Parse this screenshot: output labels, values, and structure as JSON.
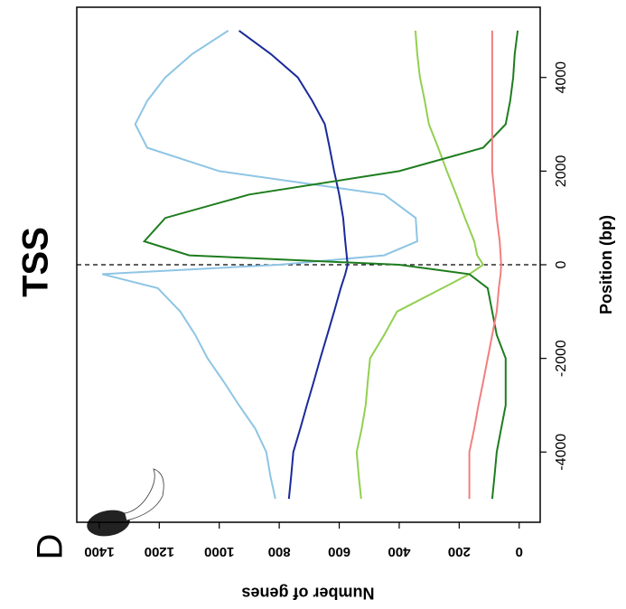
{
  "chart_data": {
    "type": "line",
    "title": "TSS",
    "panel_label": "D",
    "xlabel": "Position (bp)",
    "ylabel": "Number of genes",
    "x": [
      -5000,
      -4500,
      -4000,
      -3500,
      -3000,
      -2500,
      -2000,
      -1500,
      -1000,
      -500,
      -200,
      0,
      200,
      500,
      1000,
      1500,
      2000,
      2500,
      3000,
      3500,
      4000,
      4500,
      5000
    ],
    "series": [
      {
        "color": "#8ec5e4",
        "values": [
          813,
          830,
          843,
          880,
          934,
          985,
          1039,
          1080,
          1130,
          1205,
          1390,
          800,
          450,
          340,
          345,
          450,
          1000,
          1240,
          1280,
          1240,
          1180,
          1090,
          970
        ]
      },
      {
        "color": "#1a2a9a",
        "values": [
          768,
          760,
          753,
          730,
          708,
          685,
          663,
          640,
          617,
          595,
          580,
          572,
          575,
          580,
          587,
          600,
          617,
          632,
          648,
          690,
          738,
          828,
          934
        ]
      },
      {
        "color": "#92d050",
        "values": [
          527,
          535,
          542,
          525,
          512,
          505,
          497,
          450,
          407,
          256,
          166,
          120,
          140,
          150,
          181,
          210,
          241,
          270,
          301,
          315,
          331,
          340,
          346
        ]
      },
      {
        "color": "#1e7d1e",
        "values": [
          90,
          82,
          75,
          60,
          45,
          45,
          45,
          75,
          90,
          105,
          166,
          400,
          1100,
          1250,
          1180,
          900,
          400,
          120,
          45,
          30,
          20,
          15,
          5
        ]
      },
      {
        "color": "#f08080",
        "values": [
          166,
          166,
          166,
          150,
          136,
          120,
          105,
          90,
          75,
          68,
          62,
          60,
          62,
          65,
          75,
          82,
          90,
          90,
          90,
          90,
          90,
          90,
          90
        ]
      }
    ],
    "xlim": [
      -5500,
      5500
    ],
    "xticks": [
      -4000,
      -2000,
      0,
      2000,
      4000
    ],
    "ylim": [
      -70,
      1475
    ],
    "yticks": [
      0,
      200,
      400,
      600,
      800,
      1000,
      1200,
      1400
    ],
    "vline": 0
  }
}
